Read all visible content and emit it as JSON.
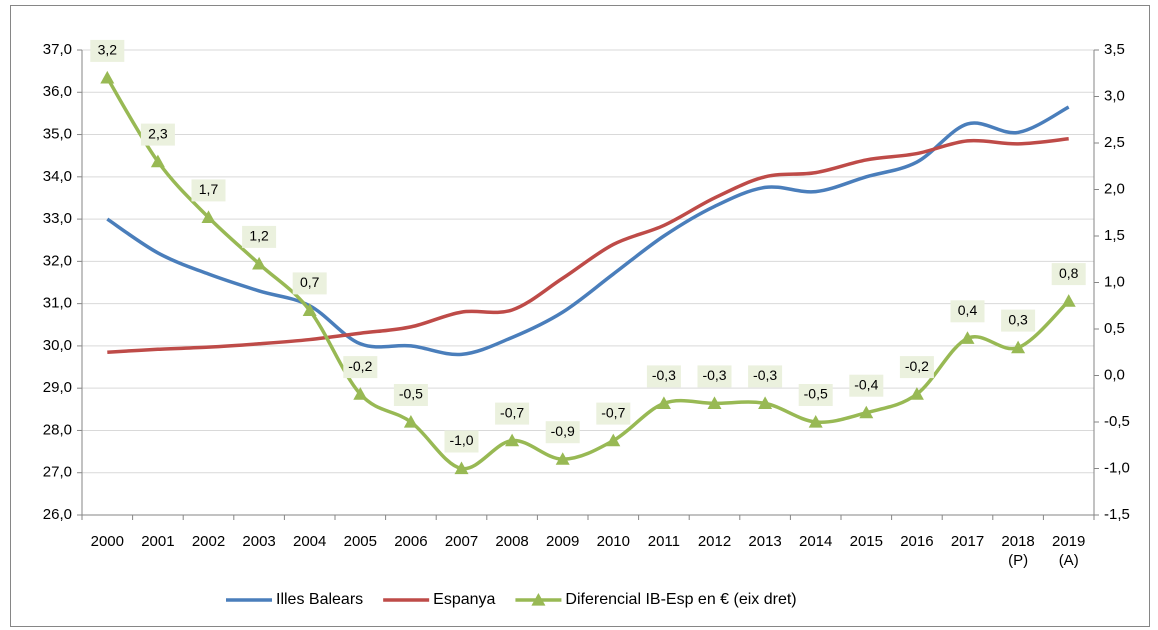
{
  "chart_data": {
    "type": "line",
    "categories": [
      "2000",
      "2001",
      "2002",
      "2003",
      "2004",
      "2005",
      "2006",
      "2007",
      "2008",
      "2009",
      "2010",
      "2011",
      "2012",
      "2013",
      "2014",
      "2015",
      "2016",
      "2017",
      "2018\n(P)",
      "2019\n(A)"
    ],
    "series": [
      {
        "name": "Illes Balears",
        "color": "#4a7ebb",
        "values": [
          33.0,
          32.2,
          31.7,
          31.3,
          30.95,
          30.05,
          30.0,
          29.8,
          30.2,
          30.8,
          31.7,
          32.6,
          33.3,
          33.75,
          33.65,
          34.0,
          34.35,
          35.25,
          35.05,
          35.65
        ]
      },
      {
        "name": "Espanya",
        "color": "#be4b48",
        "values": [
          29.85,
          29.92,
          29.97,
          30.05,
          30.15,
          30.3,
          30.45,
          30.8,
          30.85,
          31.6,
          32.4,
          32.85,
          33.5,
          34.0,
          34.1,
          34.4,
          34.55,
          34.85,
          34.78,
          34.9
        ]
      },
      {
        "name": "Diferencial IB-Esp en € (eix dret)",
        "color": "#98b954",
        "axis": "y2",
        "marker": "triangle",
        "values": [
          3.2,
          2.3,
          1.7,
          1.2,
          0.7,
          -0.2,
          -0.5,
          -1.0,
          -0.7,
          -0.9,
          -0.7,
          -0.3,
          -0.3,
          -0.3,
          -0.5,
          -0.4,
          -0.2,
          0.4,
          0.3,
          0.8
        ],
        "value_labels": [
          "3,2",
          "2,3",
          "1,7",
          "1,2",
          "0,7",
          "-0,2",
          "-0,5",
          "-1,0",
          "-0,7",
          "-0,9",
          "-0,7",
          "-0,3",
          "-0,3",
          "-0,3",
          "-0,5",
          "-0,4",
          "-0,2",
          "0,4",
          "0,3",
          "0,8"
        ]
      }
    ],
    "ylim": [
      26,
      37
    ],
    "yticks": [
      {
        "value": 26,
        "label": "26,0"
      },
      {
        "value": 27,
        "label": "27,0"
      },
      {
        "value": 28,
        "label": "28,0"
      },
      {
        "value": 29,
        "label": "29,0"
      },
      {
        "value": 30,
        "label": "30,0"
      },
      {
        "value": 31,
        "label": "31,0"
      },
      {
        "value": 32,
        "label": "32,0"
      },
      {
        "value": 33,
        "label": "33,0"
      },
      {
        "value": 34,
        "label": "34,0"
      },
      {
        "value": 35,
        "label": "35,0"
      },
      {
        "value": 36,
        "label": "36,0"
      },
      {
        "value": 37,
        "label": "37,0"
      }
    ],
    "y2lim": [
      -1.5,
      3.5
    ],
    "y2ticks": [
      {
        "value": -1.5,
        "label": "-1,5"
      },
      {
        "value": -1,
        "label": "-1,0"
      },
      {
        "value": -0.5,
        "label": "-0,5"
      },
      {
        "value": 0,
        "label": "0,0"
      },
      {
        "value": 0.5,
        "label": "0,5"
      },
      {
        "value": 1,
        "label": "1,0"
      },
      {
        "value": 1.5,
        "label": "1,5"
      },
      {
        "value": 2,
        "label": "2,0"
      },
      {
        "value": 2.5,
        "label": "2,5"
      },
      {
        "value": 3,
        "label": "3,0"
      },
      {
        "value": 3.5,
        "label": "3,5"
      }
    ],
    "grid": true,
    "legend": "bottom"
  }
}
